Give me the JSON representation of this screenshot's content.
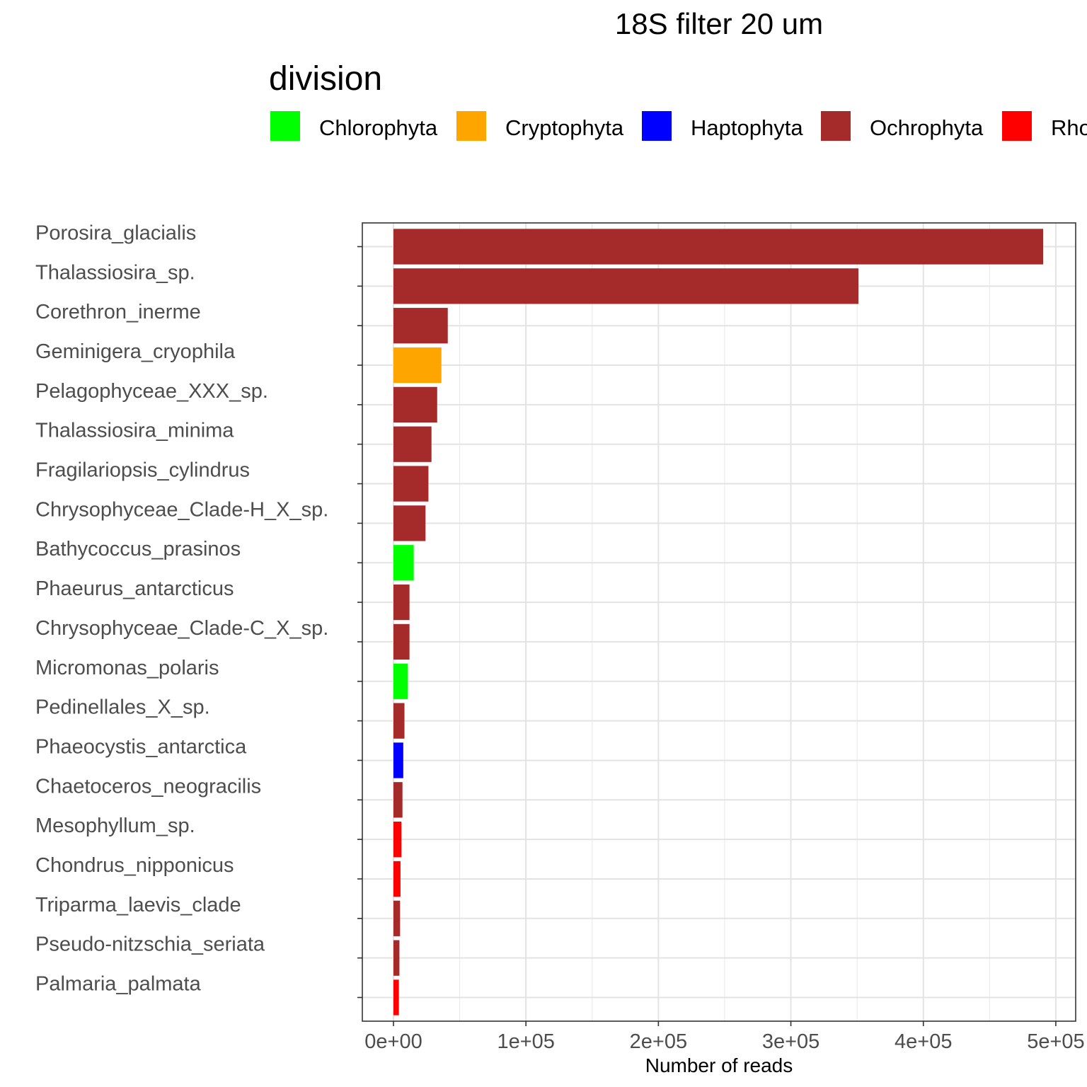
{
  "chart_data": {
    "type": "bar",
    "orientation": "horizontal",
    "title": "18S filter 20 um",
    "xlabel": "Number of reads",
    "ylabel": "",
    "xlim": [
      -23500,
      515000
    ],
    "x_ticks": [
      0,
      100000,
      200000,
      300000,
      400000,
      500000
    ],
    "x_tick_labels": [
      "0e+00",
      "1e+05",
      "2e+05",
      "3e+05",
      "4e+05",
      "5e+05"
    ],
    "grid": true,
    "legend": {
      "title": "division",
      "position": "top",
      "entries": [
        {
          "label": "Chlorophyta",
          "color": "#00ff00"
        },
        {
          "label": "Cryptophyta",
          "color": "#ffa500"
        },
        {
          "label": "Haptophyta",
          "color": "#0000ff"
        },
        {
          "label": "Ochrophyta",
          "color": "#a52a2a"
        },
        {
          "label": "Rhodophyta",
          "color": "#ff0000"
        }
      ]
    },
    "categories": [
      "Porosira_glacialis",
      "Thalassiosira_sp.",
      "Corethron_inerme",
      "Geminigera_cryophila",
      "Pelagophyceae_XXX_sp.",
      "Thalassiosira_minima",
      "Fragilariopsis_cylindrus",
      "Chrysophyceae_Clade-H_X_sp.",
      "Bathycoccus_prasinos",
      "Phaeurus_antarcticus",
      "Chrysophyceae_Clade-C_X_sp.",
      "Micromonas_polaris",
      "Pedinellales_X_sp.",
      "Phaeocystis_antarctica",
      "Chaetoceros_neogracilis",
      "Mesophyllum_sp.",
      "Chondrus_nipponicus",
      "Triparma_laevis_clade",
      "Pseudo-nitzschia_seriata",
      "Palmaria_palmata"
    ],
    "values": [
      490500,
      351000,
      41000,
      36200,
      33000,
      28700,
      26400,
      24200,
      15300,
      12100,
      12100,
      10900,
      8300,
      7400,
      6800,
      6000,
      5300,
      5000,
      4500,
      4100
    ],
    "divisions": [
      "Ochrophyta",
      "Ochrophyta",
      "Ochrophyta",
      "Cryptophyta",
      "Ochrophyta",
      "Ochrophyta",
      "Ochrophyta",
      "Ochrophyta",
      "Chlorophyta",
      "Ochrophyta",
      "Ochrophyta",
      "Chlorophyta",
      "Ochrophyta",
      "Haptophyta",
      "Ochrophyta",
      "Rhodophyta",
      "Rhodophyta",
      "Ochrophyta",
      "Ochrophyta",
      "Rhodophyta"
    ]
  }
}
